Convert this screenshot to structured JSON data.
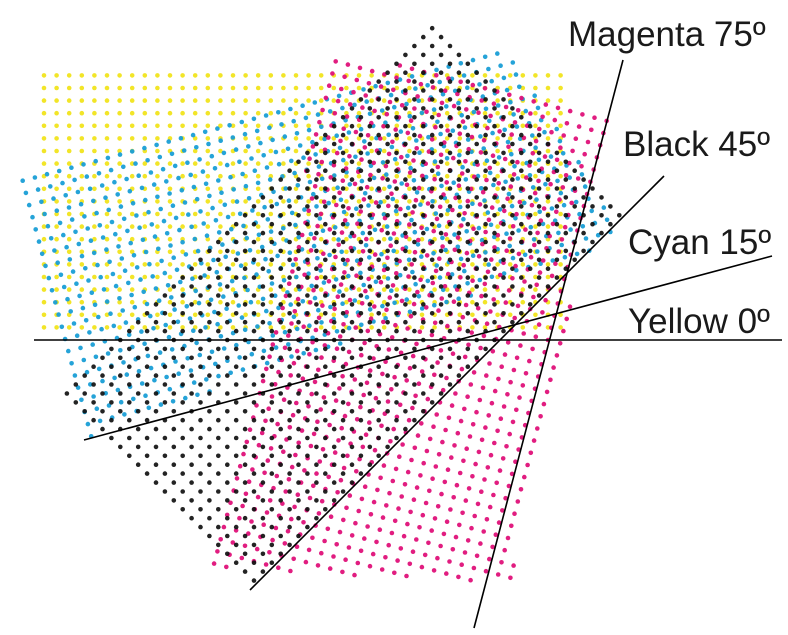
{
  "screens": [
    {
      "name": "yellow",
      "label": "Yellow 0º",
      "angle_deg": 0,
      "color": "#f2e41d"
    },
    {
      "name": "cyan",
      "label": "Cyan 15º",
      "angle_deg": 15,
      "color": "#1a9fd6"
    },
    {
      "name": "magenta",
      "label": "Magenta 75º",
      "angle_deg": 75,
      "color": "#e0117a"
    },
    {
      "name": "black",
      "label": "Black 45º",
      "angle_deg": 45,
      "color": "#111111"
    }
  ],
  "line_color": "#000000"
}
